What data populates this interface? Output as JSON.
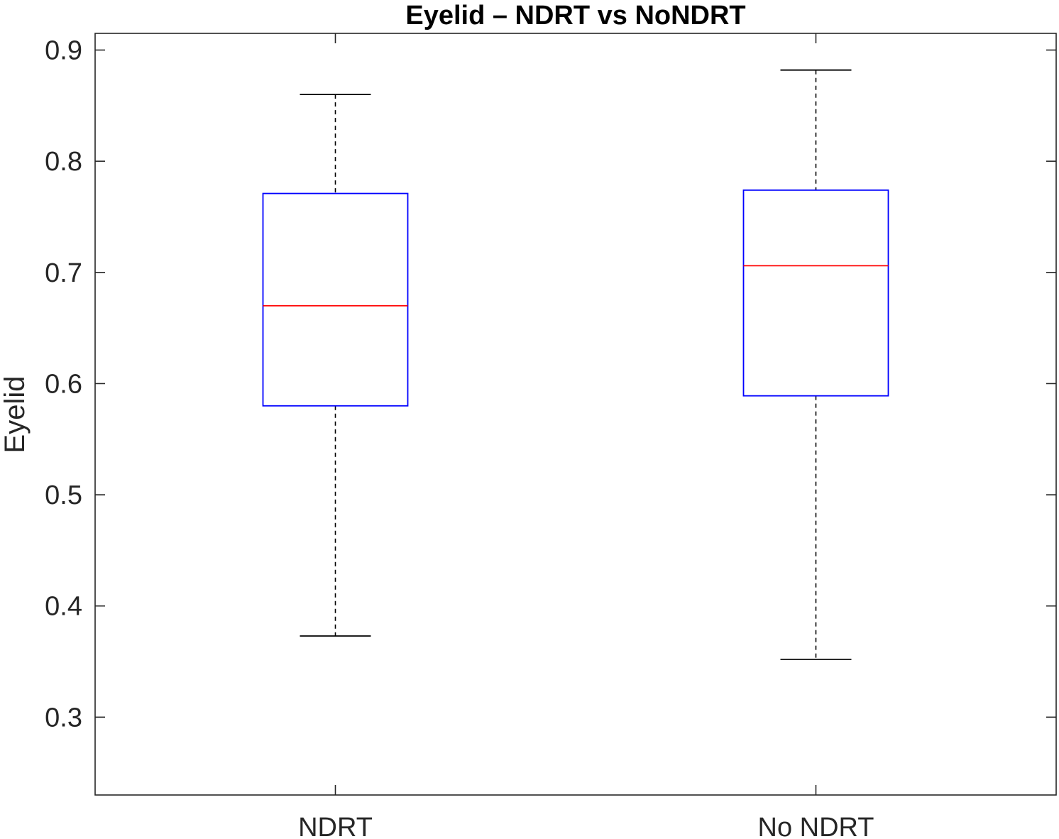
{
  "chart_data": {
    "type": "box",
    "title": "Eyelid  – NDRT vs NoNDRT",
    "xlabel": "",
    "ylabel": "Eyelid",
    "ylim": [
      0.23,
      0.915
    ],
    "yticks": [
      "0.3",
      "0.4",
      "0.5",
      "0.6",
      "0.7",
      "0.8",
      "0.9"
    ],
    "categories": [
      "NDRT",
      "No NDRT"
    ],
    "boxes": [
      {
        "category": "NDRT",
        "whisker_low": 0.373,
        "q1": 0.58,
        "median": 0.67,
        "q3": 0.771,
        "whisker_high": 0.86
      },
      {
        "category": "No NDRT",
        "whisker_low": 0.352,
        "q1": 0.589,
        "median": 0.706,
        "q3": 0.774,
        "whisker_high": 0.882
      }
    ],
    "grid": false,
    "colors": {
      "box": "#0000ff",
      "median": "#ff0000",
      "whisker": "#000000",
      "axis": "#262626"
    }
  }
}
